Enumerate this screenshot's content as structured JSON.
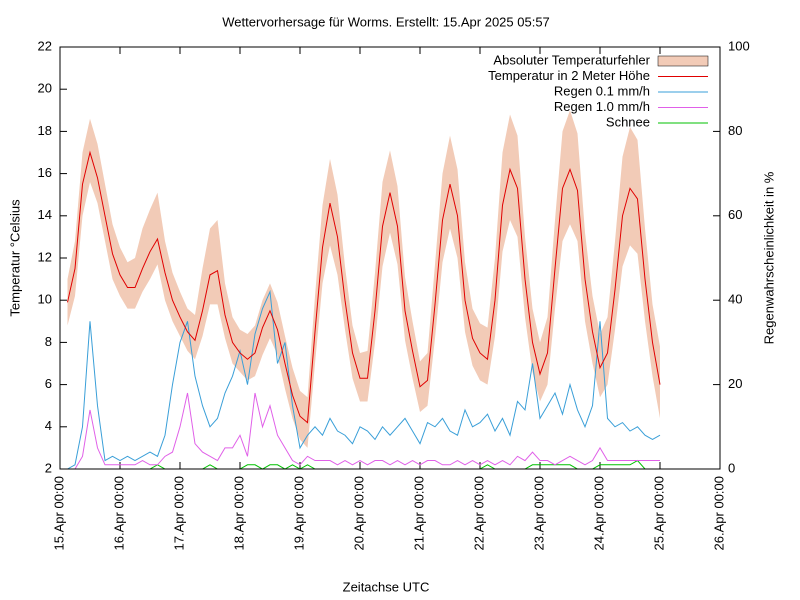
{
  "chart_data": {
    "type": "line",
    "title": "Wettervorhersage für Worms. Erstellt: 15.Apr 2025 05:57",
    "x_label": "Zeitachse UTC",
    "y_label": "Temperatur °Celsius",
    "y2_label": "Regenwahrscheinlichkeit in %",
    "legend": "top-right",
    "grid": false,
    "xlim": [
      0,
      11
    ],
    "xticks": [
      {
        "value": 0,
        "label": "15.Apr 00:00"
      },
      {
        "value": 1,
        "label": "16.Apr 00:00"
      },
      {
        "value": 2,
        "label": "17.Apr 00:00"
      },
      {
        "value": 3,
        "label": "18.Apr 00:00"
      },
      {
        "value": 4,
        "label": "19.Apr 00:00"
      },
      {
        "value": 5,
        "label": "20.Apr 00:00"
      },
      {
        "value": 6,
        "label": "21.Apr 00:00"
      },
      {
        "value": 7,
        "label": "22.Apr 00:00"
      },
      {
        "value": 8,
        "label": "23.Apr 00:00"
      },
      {
        "value": 9,
        "label": "24.Apr 00:00"
      },
      {
        "value": 10,
        "label": "25.Apr 00:00"
      },
      {
        "value": 11,
        "label": "26.Apr 00:00"
      }
    ],
    "ylim": [
      2,
      22
    ],
    "yticks": [
      2,
      4,
      6,
      8,
      10,
      12,
      14,
      16,
      18,
      20,
      22
    ],
    "y2lim": [
      0,
      100
    ],
    "y2ticks": [
      0,
      20,
      40,
      60,
      80,
      100
    ],
    "x": [
      0.125,
      0.25,
      0.375,
      0.5,
      0.625,
      0.75,
      0.875,
      1,
      1.125,
      1.25,
      1.375,
      1.5,
      1.625,
      1.75,
      1.875,
      2,
      2.125,
      2.25,
      2.375,
      2.5,
      2.625,
      2.75,
      2.875,
      3,
      3.125,
      3.25,
      3.375,
      3.5,
      3.625,
      3.75,
      3.875,
      4,
      4.125,
      4.25,
      4.375,
      4.5,
      4.625,
      4.75,
      4.875,
      5,
      5.125,
      5.25,
      5.375,
      5.5,
      5.625,
      5.75,
      5.875,
      6,
      6.125,
      6.25,
      6.375,
      6.5,
      6.625,
      6.75,
      6.875,
      7,
      7.125,
      7.25,
      7.375,
      7.5,
      7.625,
      7.75,
      7.875,
      8,
      8.125,
      8.25,
      8.375,
      8.5,
      8.625,
      8.75,
      8.875,
      9,
      9.125,
      9.25,
      9.375,
      9.5,
      9.625,
      9.75,
      9.875,
      10
    ],
    "band": {
      "name": "Absoluter Temperaturfehler",
      "color": "#f2cbb7",
      "high": [
        11.0,
        12.8,
        17.0,
        18.6,
        17.4,
        15.5,
        13.6,
        12.5,
        11.8,
        12.0,
        13.4,
        14.3,
        15.1,
        12.8,
        11.3,
        10.4,
        9.6,
        9.3,
        11.5,
        13.4,
        13.8,
        10.8,
        9.2,
        8.6,
        8.4,
        8.8,
        10.0,
        10.8,
        9.9,
        8.3,
        6.8,
        5.7,
        5.4,
        10.2,
        14.5,
        16.7,
        15.0,
        11.6,
        8.8,
        7.5,
        7.6,
        11.3,
        15.6,
        17.1,
        15.4,
        11.1,
        9.0,
        7.1,
        7.5,
        11.7,
        16.0,
        17.8,
        16.2,
        11.8,
        9.6,
        8.9,
        8.7,
        12.0,
        17.0,
        18.8,
        17.8,
        13.0,
        9.6,
        8.0,
        9.2,
        13.8,
        18.0,
        19.0,
        17.9,
        13.2,
        10.2,
        8.4,
        9.2,
        12.8,
        16.8,
        18.2,
        17.6,
        13.4,
        9.8,
        7.8
      ],
      "low": [
        8.8,
        10.2,
        14.0,
        15.6,
        14.6,
        12.8,
        11.0,
        10.2,
        9.6,
        9.6,
        10.4,
        11.0,
        11.7,
        10.0,
        9.0,
        8.3,
        7.6,
        7.2,
        8.3,
        9.8,
        9.8,
        8.2,
        7.0,
        6.6,
        6.2,
        6.4,
        7.4,
        8.2,
        7.4,
        5.8,
        4.4,
        3.4,
        3.0,
        7.0,
        10.8,
        12.6,
        11.2,
        8.6,
        6.3,
        5.2,
        5.2,
        8.0,
        11.6,
        13.2,
        11.7,
        8.1,
        6.3,
        4.7,
        5.0,
        8.2,
        11.8,
        13.4,
        12.0,
        8.5,
        6.9,
        6.2,
        6.0,
        8.3,
        12.3,
        13.8,
        13.0,
        9.2,
        6.6,
        5.2,
        6.0,
        9.6,
        12.8,
        13.6,
        12.8,
        9.0,
        7.0,
        5.4,
        6.0,
        8.6,
        11.6,
        12.6,
        12.2,
        9.0,
        6.4,
        4.4
      ]
    },
    "series": [
      {
        "name": "Temperatur in 2 Meter Höhe",
        "color": "#e00000",
        "axis": "y",
        "values": [
          9.9,
          11.5,
          15.5,
          17.0,
          15.8,
          14.0,
          12.2,
          11.2,
          10.6,
          10.6,
          11.5,
          12.3,
          12.9,
          11.3,
          10.0,
          9.2,
          8.5,
          8.1,
          9.5,
          11.2,
          11.4,
          9.3,
          8.0,
          7.5,
          7.2,
          7.5,
          8.7,
          9.5,
          8.6,
          7.0,
          5.5,
          4.5,
          4.2,
          8.5,
          12.5,
          14.6,
          13.0,
          10.0,
          7.5,
          6.3,
          6.3,
          9.5,
          13.5,
          15.1,
          13.5,
          9.5,
          7.6,
          5.9,
          6.2,
          9.8,
          13.8,
          15.5,
          14.0,
          10.0,
          8.2,
          7.5,
          7.2,
          10.0,
          14.5,
          16.2,
          15.3,
          11.0,
          8.0,
          6.5,
          7.5,
          11.5,
          15.3,
          16.2,
          15.2,
          11.0,
          8.5,
          6.8,
          7.5,
          10.5,
          14.0,
          15.3,
          14.8,
          11.0,
          8.0,
          6.0
        ]
      },
      {
        "name": "Regen 0.1 mm/h",
        "color": "#3a9fd8",
        "axis": "y2",
        "values": [
          0,
          1,
          10,
          35,
          15,
          2,
          3,
          2,
          3,
          2,
          3,
          4,
          3,
          8,
          20,
          30,
          35,
          22,
          15,
          10,
          12,
          18,
          22,
          28,
          20,
          32,
          38,
          42,
          25,
          30,
          15,
          5,
          8,
          10,
          8,
          12,
          9,
          8,
          6,
          10,
          9,
          7,
          10,
          8,
          10,
          12,
          9,
          6,
          11,
          10,
          12,
          9,
          8,
          14,
          10,
          11,
          13,
          9,
          12,
          8,
          16,
          14,
          25,
          12,
          15,
          18,
          13,
          20,
          14,
          10,
          15,
          35,
          12,
          10,
          11,
          9,
          10,
          8,
          7,
          8
        ]
      },
      {
        "name": "Regen 1.0 mm/h",
        "color": "#e060e8",
        "axis": "y2",
        "values": [
          0,
          0,
          3,
          14,
          5,
          1,
          1,
          1,
          1,
          1,
          2,
          1,
          1,
          3,
          4,
          10,
          18,
          6,
          4,
          3,
          2,
          5,
          5,
          8,
          3,
          18,
          10,
          15,
          8,
          5,
          2,
          1,
          3,
          2,
          2,
          2,
          1,
          2,
          1,
          2,
          1,
          2,
          2,
          1,
          2,
          1,
          2,
          1,
          2,
          2,
          1,
          1,
          2,
          1,
          2,
          1,
          2,
          1,
          2,
          1,
          3,
          2,
          4,
          2,
          2,
          1,
          2,
          3,
          2,
          1,
          2,
          5,
          2,
          2,
          2,
          2,
          2,
          2,
          2,
          2
        ]
      },
      {
        "name": "Schnee",
        "color": "#00c000",
        "axis": "y2",
        "values": [
          0,
          0,
          0,
          0,
          0,
          0,
          0,
          0,
          0,
          0,
          0,
          0,
          1,
          0,
          0,
          0,
          0,
          0,
          0,
          1,
          0,
          0,
          0,
          0,
          1,
          1,
          0,
          1,
          1,
          0,
          1,
          0,
          1,
          0,
          0,
          0,
          0,
          0,
          0,
          0,
          0,
          0,
          0,
          0,
          0,
          0,
          0,
          0,
          0,
          0,
          0,
          0,
          0,
          0,
          0,
          0,
          1,
          0,
          0,
          0,
          0,
          0,
          1,
          1,
          1,
          1,
          1,
          1,
          0,
          0,
          0,
          1,
          1,
          1,
          1,
          1,
          2,
          0,
          0,
          0
        ]
      }
    ]
  }
}
